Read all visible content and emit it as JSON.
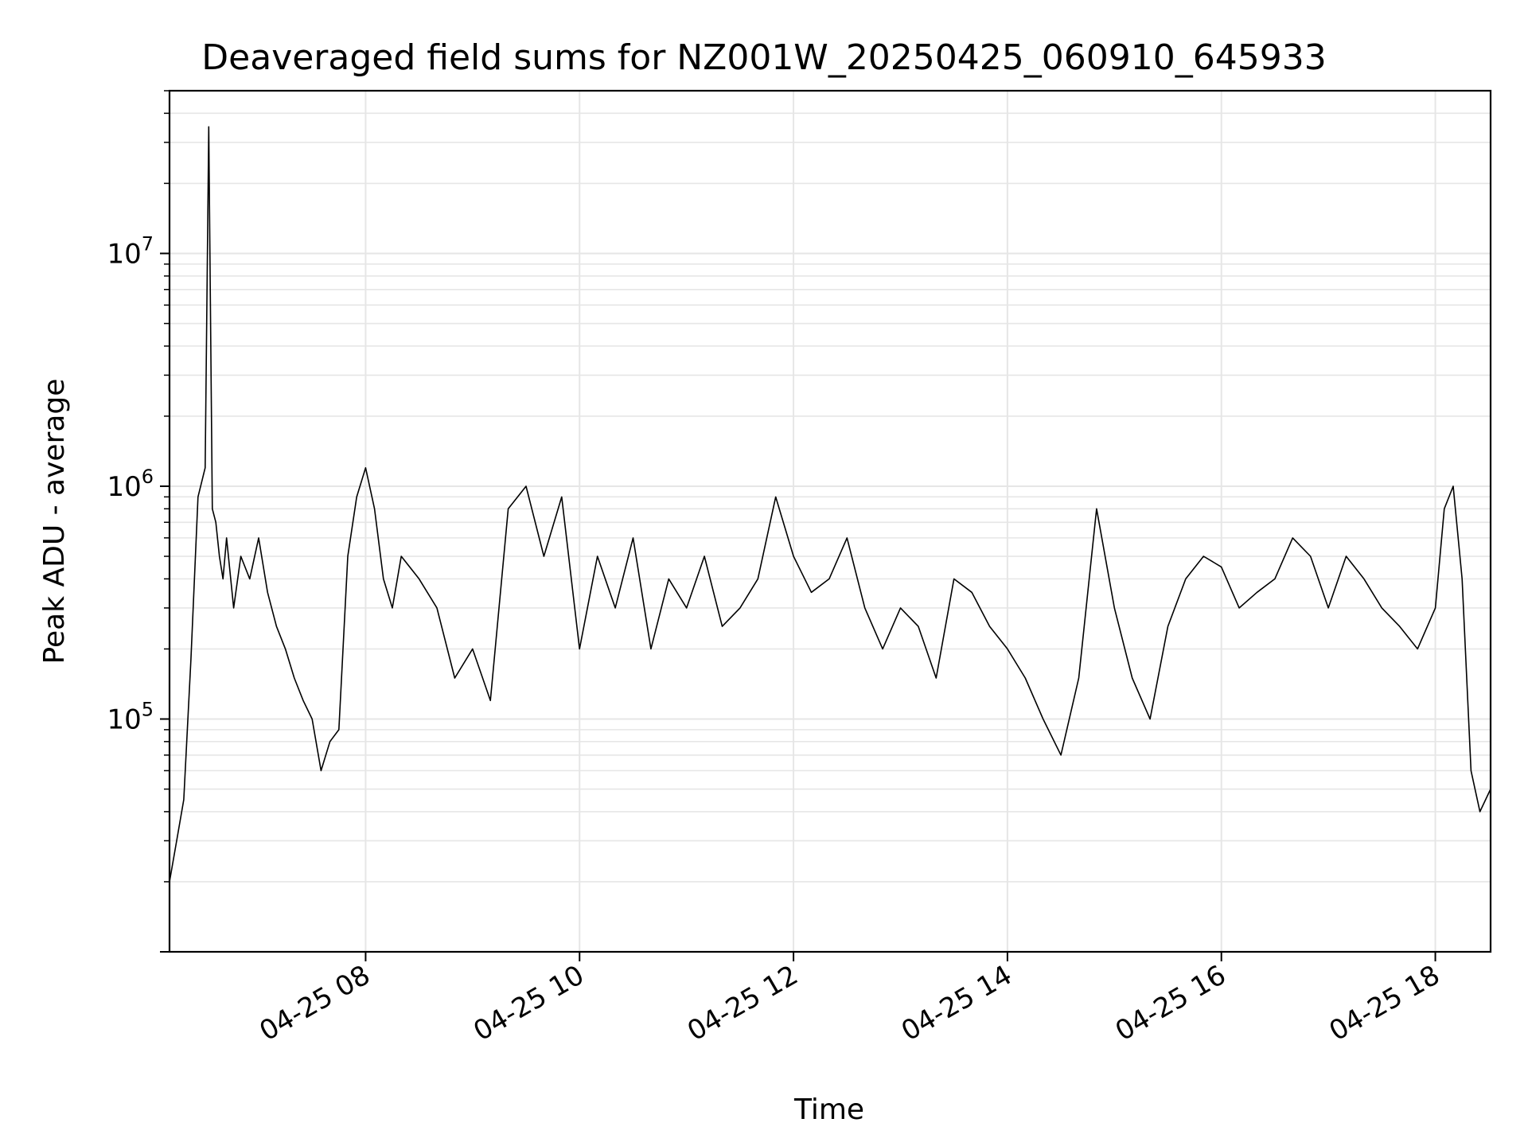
{
  "chart_data": {
    "type": "line",
    "title": "Deaveraged field sums for NZ001W_20250425_060910_645933",
    "xlabel": "Time",
    "ylabel": "Peak ADU - average",
    "x_axis": {
      "kind": "time",
      "range": [
        "2025-04-25T06:10",
        "2025-04-25T18:31"
      ],
      "ticks": [
        {
          "label": "04-25 08",
          "value": "2025-04-25T08:00"
        },
        {
          "label": "04-25 10",
          "value": "2025-04-25T10:00"
        },
        {
          "label": "04-25 12",
          "value": "2025-04-25T12:00"
        },
        {
          "label": "04-25 14",
          "value": "2025-04-25T14:00"
        },
        {
          "label": "04-25 16",
          "value": "2025-04-25T16:00"
        },
        {
          "label": "04-25 18",
          "value": "2025-04-25T18:00"
        }
      ]
    },
    "y_axis": {
      "scale": "log",
      "range": [
        10000,
        50000000
      ],
      "ticks": [
        {
          "base": "10",
          "exp": "5",
          "value": 100000
        },
        {
          "base": "10",
          "exp": "6",
          "value": 1000000
        },
        {
          "base": "10",
          "exp": "7",
          "value": 10000000
        }
      ]
    },
    "grid": true,
    "line_color": "#000000",
    "grid_color": "#e6e6e6",
    "series": [
      {
        "x": [
          "2025-04-25T06:10",
          "2025-04-25T06:14",
          "2025-04-25T06:18",
          "2025-04-25T06:22",
          "2025-04-25T06:26",
          "2025-04-25T06:30",
          "2025-04-25T06:32",
          "2025-04-25T06:34",
          "2025-04-25T06:36",
          "2025-04-25T06:38",
          "2025-04-25T06:40",
          "2025-04-25T06:42",
          "2025-04-25T06:46",
          "2025-04-25T06:50",
          "2025-04-25T06:55",
          "2025-04-25T07:00",
          "2025-04-25T07:05",
          "2025-04-25T07:10",
          "2025-04-25T07:15",
          "2025-04-25T07:20",
          "2025-04-25T07:25",
          "2025-04-25T07:30",
          "2025-04-25T07:35",
          "2025-04-25T07:40",
          "2025-04-25T07:45",
          "2025-04-25T07:50",
          "2025-04-25T07:55",
          "2025-04-25T08:00",
          "2025-04-25T08:05",
          "2025-04-25T08:10",
          "2025-04-25T08:15",
          "2025-04-25T08:20",
          "2025-04-25T08:30",
          "2025-04-25T08:40",
          "2025-04-25T08:50",
          "2025-04-25T09:00",
          "2025-04-25T09:10",
          "2025-04-25T09:20",
          "2025-04-25T09:30",
          "2025-04-25T09:40",
          "2025-04-25T09:50",
          "2025-04-25T10:00",
          "2025-04-25T10:10",
          "2025-04-25T10:20",
          "2025-04-25T10:30",
          "2025-04-25T10:40",
          "2025-04-25T10:50",
          "2025-04-25T11:00",
          "2025-04-25T11:10",
          "2025-04-25T11:20",
          "2025-04-25T11:30",
          "2025-04-25T11:40",
          "2025-04-25T11:50",
          "2025-04-25T12:00",
          "2025-04-25T12:10",
          "2025-04-25T12:20",
          "2025-04-25T12:30",
          "2025-04-25T12:40",
          "2025-04-25T12:50",
          "2025-04-25T13:00",
          "2025-04-25T13:10",
          "2025-04-25T13:20",
          "2025-04-25T13:30",
          "2025-04-25T13:40",
          "2025-04-25T13:50",
          "2025-04-25T14:00",
          "2025-04-25T14:10",
          "2025-04-25T14:20",
          "2025-04-25T14:30",
          "2025-04-25T14:40",
          "2025-04-25T14:50",
          "2025-04-25T15:00",
          "2025-04-25T15:10",
          "2025-04-25T15:20",
          "2025-04-25T15:30",
          "2025-04-25T15:40",
          "2025-04-25T15:50",
          "2025-04-25T16:00",
          "2025-04-25T16:10",
          "2025-04-25T16:20",
          "2025-04-25T16:30",
          "2025-04-25T16:40",
          "2025-04-25T16:50",
          "2025-04-25T17:00",
          "2025-04-25T17:10",
          "2025-04-25T17:20",
          "2025-04-25T17:30",
          "2025-04-25T17:40",
          "2025-04-25T17:50",
          "2025-04-25T18:00",
          "2025-04-25T18:05",
          "2025-04-25T18:10",
          "2025-04-25T18:15",
          "2025-04-25T18:20",
          "2025-04-25T18:25",
          "2025-04-25T18:31"
        ],
        "y": [
          20000,
          30000,
          45000,
          180000,
          900000,
          1200000,
          35000000,
          800000,
          700000,
          500000,
          400000,
          600000,
          300000,
          500000,
          400000,
          600000,
          350000,
          250000,
          200000,
          150000,
          120000,
          100000,
          60000,
          80000,
          90000,
          500000,
          900000,
          1200000,
          800000,
          400000,
          300000,
          500000,
          400000,
          300000,
          150000,
          200000,
          120000,
          800000,
          1000000,
          500000,
          900000,
          200000,
          500000,
          300000,
          600000,
          200000,
          400000,
          300000,
          500000,
          250000,
          300000,
          400000,
          900000,
          500000,
          350000,
          400000,
          600000,
          300000,
          200000,
          300000,
          250000,
          150000,
          400000,
          350000,
          250000,
          200000,
          150000,
          100000,
          70000,
          150000,
          800000,
          300000,
          150000,
          100000,
          250000,
          400000,
          500000,
          450000,
          300000,
          350000,
          400000,
          600000,
          500000,
          300000,
          500000,
          400000,
          300000,
          250000,
          200000,
          300000,
          800000,
          1000000,
          400000,
          60000,
          40000,
          50000
        ]
      }
    ]
  }
}
